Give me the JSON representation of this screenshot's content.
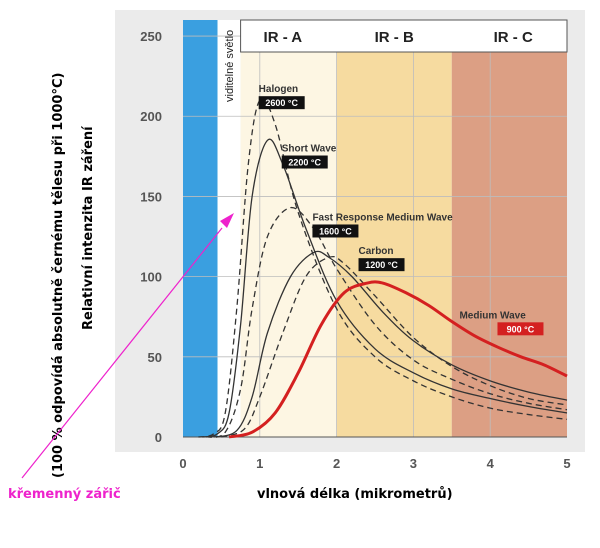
{
  "chart_data": {
    "type": "line",
    "xlabel": "vlnová délka (mikrometrů)",
    "ylabel": "Relativní intenzita IR záření",
    "ylabel2": "(100 % odpovídá absolutně černému tělesu při 1000°C)",
    "x_ticks": [
      "0",
      "1",
      "2",
      "3",
      "4",
      "5"
    ],
    "y_ticks": [
      "0",
      "50",
      "100",
      "150",
      "200",
      "250"
    ],
    "xlim": [
      0,
      5
    ],
    "ylim": [
      0,
      260
    ],
    "grid": true,
    "bands": [
      {
        "label": "",
        "from": 0,
        "to": 0.45,
        "color": "#3a9fe0"
      },
      {
        "label": "viditelné světlo",
        "from": 0.45,
        "to": 0.75,
        "color": "#ffffff"
      },
      {
        "label": "IR - A",
        "from": 0.75,
        "to": 2.0,
        "color": "#fdf6e3"
      },
      {
        "label": "IR - B",
        "from": 2.0,
        "to": 3.5,
        "color": "#f6dba0"
      },
      {
        "label": "IR - C",
        "from": 3.5,
        "to": 5.0,
        "color": "#dc9f84"
      }
    ],
    "series": [
      {
        "name": "Halogen",
        "temp": "2600 °C",
        "style": "dashed",
        "color": "#333333",
        "width": 1.3,
        "x": [
          0.2,
          0.4,
          0.55,
          0.7,
          0.85,
          1.0,
          1.2,
          1.5,
          2.0,
          2.5,
          3.0,
          3.5,
          4.0,
          4.5,
          5.0
        ],
        "y": [
          0,
          2,
          15,
          80,
          170,
          210,
          195,
          140,
          80,
          50,
          35,
          25,
          18,
          14,
          11
        ]
      },
      {
        "name": "Short Wave",
        "temp": "2200 °C",
        "style": "solid",
        "color": "#333333",
        "width": 1.3,
        "x": [
          0.25,
          0.45,
          0.6,
          0.75,
          0.9,
          1.1,
          1.3,
          1.6,
          2.0,
          2.5,
          3.0,
          3.5,
          4.0,
          4.5,
          5.0
        ],
        "y": [
          0,
          2,
          15,
          70,
          150,
          185,
          170,
          130,
          85,
          55,
          40,
          30,
          24,
          19,
          15
        ]
      },
      {
        "name": "Fast Response Medium Wave",
        "temp": "1600 °C",
        "style": "dashed",
        "color": "#333333",
        "width": 1.3,
        "x": [
          0.3,
          0.55,
          0.75,
          0.9,
          1.1,
          1.4,
          1.7,
          2.0,
          2.5,
          3.0,
          3.5,
          4.0,
          4.5,
          5.0
        ],
        "y": [
          0,
          3,
          30,
          80,
          125,
          143,
          130,
          105,
          70,
          48,
          36,
          27,
          21,
          17
        ]
      },
      {
        "name": "Carbon",
        "temp": "1200 °C",
        "style": "solid",
        "color": "#333333",
        "width": 1.3,
        "x": [
          0.4,
          0.7,
          0.9,
          1.1,
          1.4,
          1.7,
          1.9,
          2.2,
          2.6,
          3.0,
          3.5,
          4.0,
          4.5,
          5.0
        ],
        "y": [
          0,
          4,
          25,
          65,
          100,
          115,
          112,
          100,
          78,
          60,
          45,
          35,
          28,
          23
        ]
      },
      {
        "name": "",
        "temp": "",
        "style": "dashed",
        "color": "#333333",
        "width": 1.3,
        "x": [
          0.5,
          0.8,
          1.0,
          1.3,
          1.6,
          1.9,
          2.1,
          2.5,
          3.0,
          3.5,
          4.0,
          4.5,
          5.0
        ],
        "y": [
          0,
          5,
          25,
          65,
          100,
          112,
          108,
          88,
          62,
          44,
          32,
          24,
          20
        ]
      },
      {
        "name": "Medium Wave",
        "temp": "900 °C",
        "style": "solid",
        "color": "#d42020",
        "width": 3,
        "x": [
          0.6,
          0.9,
          1.2,
          1.5,
          1.8,
          2.1,
          2.4,
          2.6,
          2.9,
          3.2,
          3.5,
          3.8,
          4.1,
          4.4,
          4.7,
          5.0
        ],
        "y": [
          0,
          3,
          15,
          40,
          70,
          90,
          96,
          96,
          90,
          82,
          72,
          63,
          56,
          50,
          45,
          38
        ]
      }
    ],
    "annotation": {
      "text": "křemenný zářič",
      "color": "#ee22cc",
      "points_to": {
        "x": 0.7,
        "y": 150
      }
    }
  }
}
